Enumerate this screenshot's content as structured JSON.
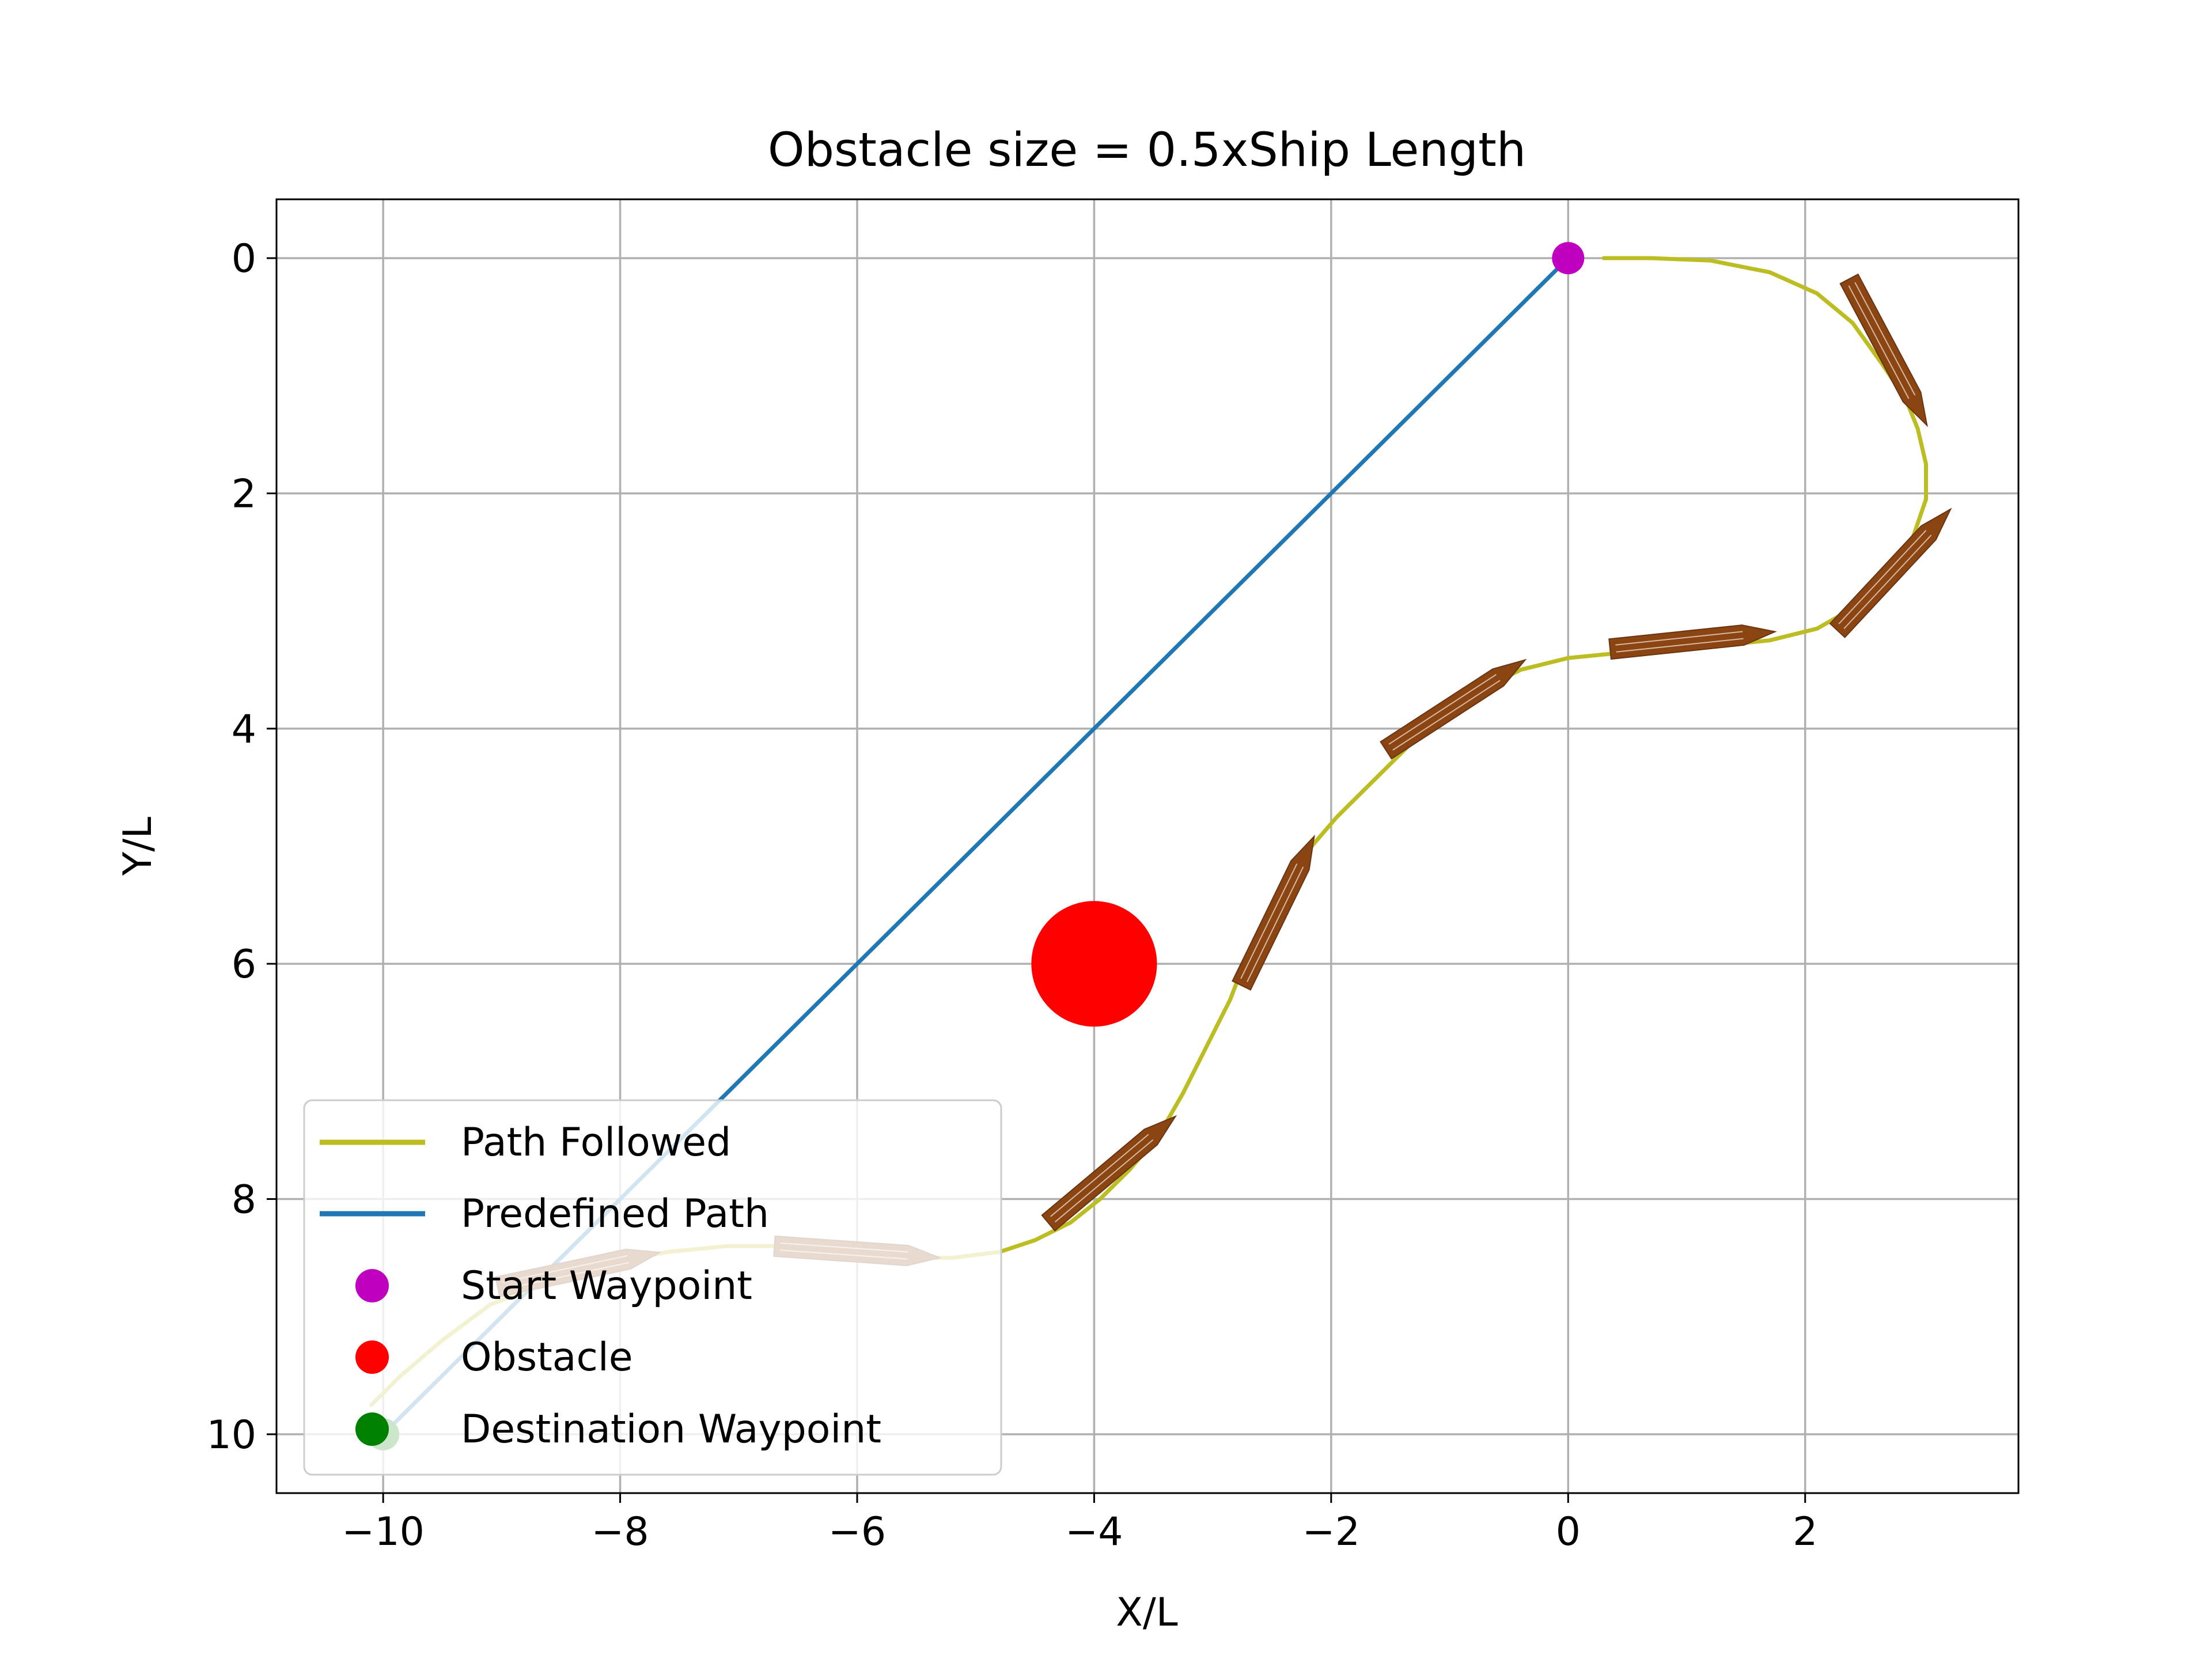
{
  "chart_data": {
    "type": "line",
    "title": "Obstacle size = 0.5xShip Length",
    "xlabel": "X/L",
    "ylabel": "Y/L",
    "xlim": [
      -10.9,
      3.8
    ],
    "ylim": [
      10.5,
      -0.5
    ],
    "y_inverted": true,
    "grid": true,
    "x_ticks": [
      -10,
      -8,
      -6,
      -4,
      -2,
      0,
      2
    ],
    "x_tick_labels": [
      "−10",
      "−8",
      "−6",
      "−4",
      "−2",
      "0",
      "2"
    ],
    "y_ticks": [
      0,
      2,
      4,
      6,
      8,
      10
    ],
    "y_tick_labels": [
      "0",
      "2",
      "4",
      "6",
      "8",
      "10"
    ],
    "legend_position": "lower left",
    "series": [
      {
        "name": "Path Followed",
        "kind": "line",
        "color": "#bcbd22",
        "points": [
          [
            0.3,
            0.0
          ],
          [
            0.7,
            0.0
          ],
          [
            1.2,
            0.02
          ],
          [
            1.7,
            0.12
          ],
          [
            2.1,
            0.3
          ],
          [
            2.4,
            0.55
          ],
          [
            2.65,
            0.9
          ],
          [
            2.85,
            1.2
          ],
          [
            2.95,
            1.45
          ],
          [
            3.02,
            1.75
          ],
          [
            3.02,
            2.05
          ],
          [
            2.9,
            2.4
          ],
          [
            2.7,
            2.7
          ],
          [
            2.45,
            2.95
          ],
          [
            2.1,
            3.15
          ],
          [
            1.7,
            3.25
          ],
          [
            1.2,
            3.3
          ],
          [
            0.5,
            3.35
          ],
          [
            0.0,
            3.4
          ],
          [
            -0.4,
            3.5
          ],
          [
            -0.7,
            3.65
          ],
          [
            -1.0,
            3.85
          ],
          [
            -1.3,
            4.1
          ],
          [
            -1.6,
            4.4
          ],
          [
            -1.95,
            4.75
          ],
          [
            -2.25,
            5.1
          ],
          [
            -2.5,
            5.5
          ],
          [
            -2.7,
            5.9
          ],
          [
            -2.85,
            6.3
          ],
          [
            -3.05,
            6.7
          ],
          [
            -3.25,
            7.1
          ],
          [
            -3.45,
            7.45
          ],
          [
            -3.7,
            7.75
          ],
          [
            -3.95,
            8.0
          ],
          [
            -4.2,
            8.2
          ],
          [
            -4.5,
            8.35
          ],
          [
            -4.8,
            8.45
          ],
          [
            -5.2,
            8.5
          ],
          [
            -5.6,
            8.5
          ],
          [
            -6.1,
            8.45
          ],
          [
            -6.6,
            8.4
          ],
          [
            -7.1,
            8.4
          ],
          [
            -7.6,
            8.45
          ],
          [
            -8.1,
            8.55
          ],
          [
            -8.6,
            8.7
          ],
          [
            -9.1,
            8.9
          ],
          [
            -9.5,
            9.2
          ],
          [
            -9.85,
            9.5
          ],
          [
            -10.1,
            9.75
          ]
        ],
        "fade_after_x": -5.0
      },
      {
        "name": "Predefined Path",
        "kind": "line",
        "color": "#1f77b4",
        "points": [
          [
            0,
            0
          ],
          [
            -10,
            10
          ]
        ],
        "fade_after_y": 7.2
      },
      {
        "name": "Start Waypoint",
        "kind": "point",
        "color": "#bf00bf",
        "x": 0,
        "y": 0
      },
      {
        "name": "Obstacle",
        "kind": "obstacle",
        "color": "#ff0000",
        "x": -4,
        "y": 6,
        "radius": 0.53
      },
      {
        "name": "Destination Waypoint",
        "kind": "point",
        "color": "#008000",
        "x": -10,
        "y": 10
      }
    ],
    "ship_markers": {
      "color": "#8b4513",
      "length": 1.4,
      "width": 0.17,
      "poses": [
        {
          "x": 2.7,
          "y": 0.8,
          "heading_deg": 62
        },
        {
          "x": 2.75,
          "y": 2.65,
          "heading_deg": -47
        },
        {
          "x": 1.05,
          "y": 3.25,
          "heading_deg": -6
        },
        {
          "x": -0.95,
          "y": 3.8,
          "heading_deg": -33
        },
        {
          "x": -2.45,
          "y": 5.55,
          "heading_deg": -64
        },
        {
          "x": -3.85,
          "y": 7.75,
          "heading_deg": -40
        },
        {
          "x": -6.0,
          "y": 8.45,
          "heading_deg": 4
        },
        {
          "x": -8.35,
          "y": 8.6,
          "heading_deg": -12
        }
      ]
    }
  }
}
